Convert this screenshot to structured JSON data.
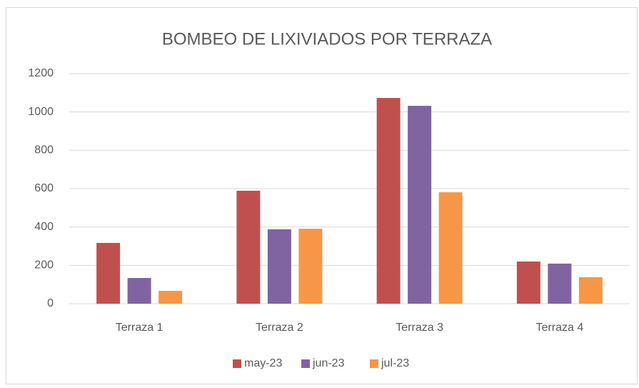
{
  "chart_data": {
    "type": "bar",
    "title": "BOMBEO DE LIXIVIADOS POR TERRAZA",
    "categories": [
      "Terraza 1",
      "Terraza 2",
      "Terraza 3",
      "Terraza 4"
    ],
    "series": [
      {
        "name": "may-23",
        "color": "#c0504d",
        "values": [
          317,
          589,
          1073,
          220
        ]
      },
      {
        "name": "jun-23",
        "color": "#8064a2",
        "values": [
          134,
          388,
          1032,
          209
        ]
      },
      {
        "name": "jul-23",
        "color": "#f79646",
        "values": [
          67,
          391,
          581,
          138
        ]
      }
    ],
    "ylim": [
      0,
      1200
    ],
    "yticks": [
      0,
      200,
      400,
      600,
      800,
      1000,
      1200
    ],
    "grid": true,
    "legend": "bottom"
  }
}
